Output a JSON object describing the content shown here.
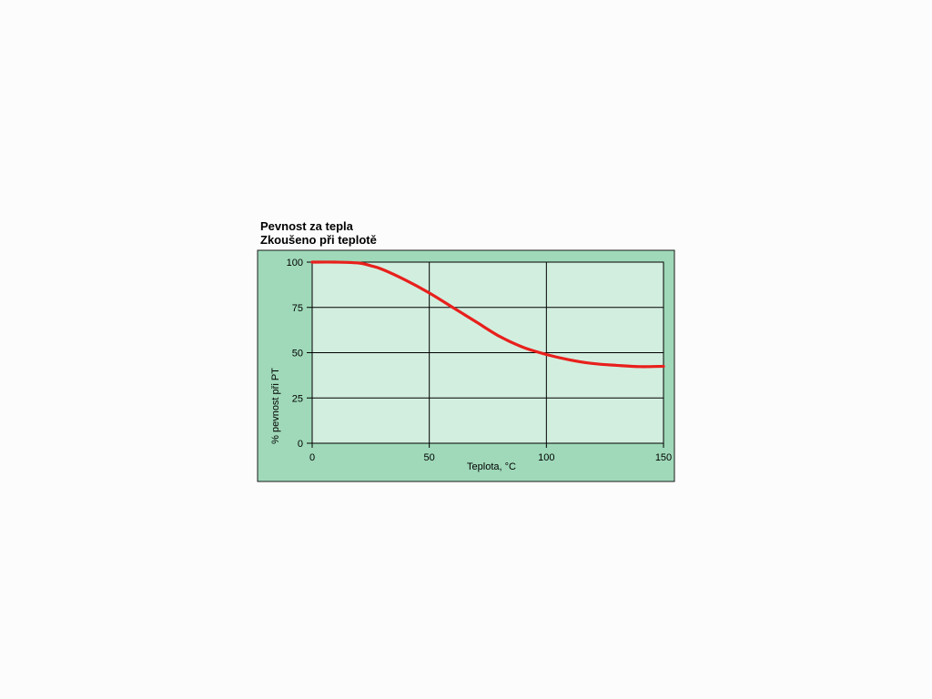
{
  "chart_data": {
    "type": "line",
    "title": "Pevnost za tepla",
    "subtitle": "Zkoušeno při teplotě",
    "xlabel": "Teplota, °C",
    "ylabel": "% pevnost při PT",
    "xlim": [
      0,
      150
    ],
    "ylim": [
      0,
      100
    ],
    "x_ticks": [
      "0",
      "50",
      "100",
      "150"
    ],
    "y_ticks": [
      "0",
      "25",
      "50",
      "75",
      "100"
    ],
    "grid": true,
    "series": [
      {
        "x": [
          0,
          10,
          20,
          25,
          30,
          40,
          50,
          60,
          70,
          80,
          90,
          100,
          110,
          120,
          130,
          140,
          150
        ],
        "y": [
          100,
          100,
          99.5,
          98,
          96,
          90,
          83,
          75,
          67,
          59,
          53,
          49,
          46,
          44,
          43,
          42.3,
          42.5
        ]
      }
    ],
    "colors": {
      "panel_background": "#9fd9b9",
      "plot_background": "#d2eedf",
      "line": "#e8201c",
      "grid": "#000000"
    }
  }
}
